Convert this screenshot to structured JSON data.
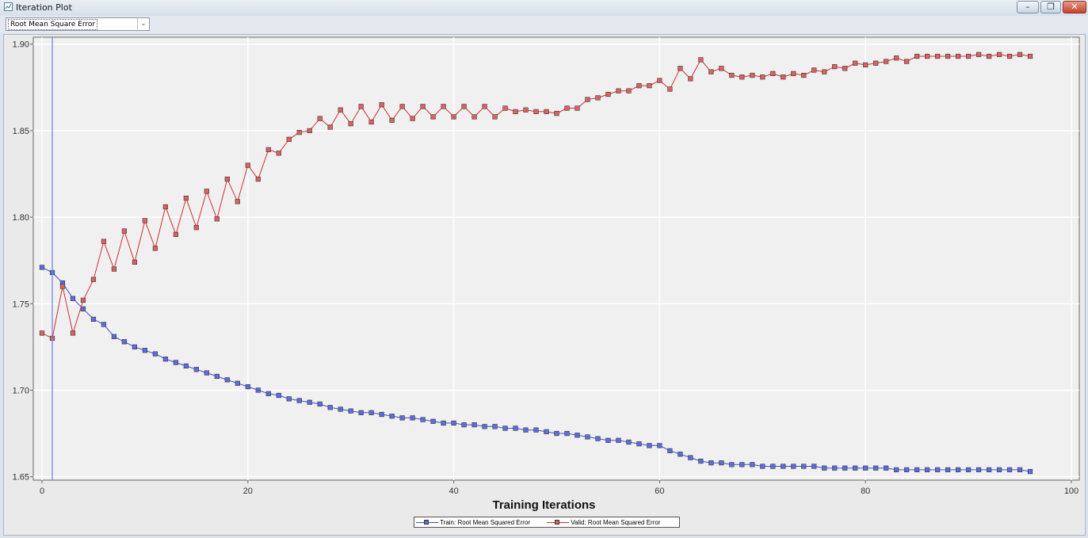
{
  "window": {
    "title": "Iteration Plot",
    "minimize_label": "–",
    "restore_label": "❐",
    "close_label": "✕"
  },
  "toolbar": {
    "statistic_select": "Root Mean Square Error"
  },
  "chart_data": {
    "type": "line",
    "xlabel": "Training Iterations",
    "ylabel": "",
    "xlim": [
      0,
      100
    ],
    "ylim": [
      1.648,
      1.904
    ],
    "xticks": [
      "0",
      "20",
      "40",
      "60",
      "80",
      "100"
    ],
    "yticks": [
      "1.65",
      "1.70",
      "1.75",
      "1.80",
      "1.85",
      "1.90"
    ],
    "grid": true,
    "legend_position": "bottom",
    "reference_line_x": 1,
    "series": [
      {
        "name": "Train: Root Mean Squared Error",
        "color": "#5b6ee0",
        "line_color": "#3d4fd1",
        "x": [
          0,
          1,
          2,
          3,
          4,
          5,
          6,
          7,
          8,
          9,
          10,
          11,
          12,
          13,
          14,
          15,
          16,
          17,
          18,
          19,
          20,
          21,
          22,
          23,
          24,
          25,
          26,
          27,
          28,
          29,
          30,
          31,
          32,
          33,
          34,
          35,
          36,
          37,
          38,
          39,
          40,
          41,
          42,
          43,
          44,
          45,
          46,
          47,
          48,
          49,
          50,
          51,
          52,
          53,
          54,
          55,
          56,
          57,
          58,
          59,
          60,
          61,
          62,
          63,
          64,
          65,
          66,
          67,
          68,
          69,
          70,
          71,
          72,
          73,
          74,
          75,
          76,
          77,
          78,
          79,
          80,
          81,
          82,
          83,
          84,
          85,
          86,
          87,
          88,
          89,
          90,
          91,
          92,
          93,
          94,
          95,
          96
        ],
        "values": [
          1.771,
          1.768,
          1.762,
          1.753,
          1.747,
          1.741,
          1.738,
          1.731,
          1.728,
          1.725,
          1.723,
          1.721,
          1.718,
          1.716,
          1.714,
          1.712,
          1.71,
          1.708,
          1.706,
          1.704,
          1.702,
          1.7,
          1.698,
          1.697,
          1.695,
          1.694,
          1.693,
          1.692,
          1.69,
          1.689,
          1.688,
          1.687,
          1.687,
          1.686,
          1.685,
          1.684,
          1.684,
          1.683,
          1.682,
          1.681,
          1.681,
          1.68,
          1.68,
          1.679,
          1.679,
          1.678,
          1.678,
          1.677,
          1.677,
          1.676,
          1.675,
          1.675,
          1.674,
          1.673,
          1.672,
          1.671,
          1.671,
          1.67,
          1.669,
          1.668,
          1.668,
          1.665,
          1.663,
          1.661,
          1.659,
          1.658,
          1.658,
          1.657,
          1.657,
          1.657,
          1.656,
          1.656,
          1.656,
          1.656,
          1.656,
          1.656,
          1.655,
          1.655,
          1.655,
          1.655,
          1.655,
          1.655,
          1.655,
          1.654,
          1.654,
          1.654,
          1.654,
          1.654,
          1.654,
          1.654,
          1.654,
          1.654,
          1.654,
          1.654,
          1.654,
          1.654,
          1.653
        ]
      },
      {
        "name": "Valid: Root Mean Squared Error",
        "color": "#e06060",
        "line_color": "#d03030",
        "x": [
          0,
          1,
          2,
          3,
          4,
          5,
          6,
          7,
          8,
          9,
          10,
          11,
          12,
          13,
          14,
          15,
          16,
          17,
          18,
          19,
          20,
          21,
          22,
          23,
          24,
          25,
          26,
          27,
          28,
          29,
          30,
          31,
          32,
          33,
          34,
          35,
          36,
          37,
          38,
          39,
          40,
          41,
          42,
          43,
          44,
          45,
          46,
          47,
          48,
          49,
          50,
          51,
          52,
          53,
          54,
          55,
          56,
          57,
          58,
          59,
          60,
          61,
          62,
          63,
          64,
          65,
          66,
          67,
          68,
          69,
          70,
          71,
          72,
          73,
          74,
          75,
          76,
          77,
          78,
          79,
          80,
          81,
          82,
          83,
          84,
          85,
          86,
          87,
          88,
          89,
          90,
          91,
          92,
          93,
          94,
          95,
          96
        ],
        "values": [
          1.733,
          1.73,
          1.76,
          1.733,
          1.752,
          1.764,
          1.786,
          1.77,
          1.792,
          1.774,
          1.798,
          1.782,
          1.806,
          1.79,
          1.811,
          1.794,
          1.815,
          1.799,
          1.822,
          1.809,
          1.83,
          1.822,
          1.839,
          1.837,
          1.845,
          1.849,
          1.85,
          1.857,
          1.852,
          1.862,
          1.854,
          1.864,
          1.855,
          1.865,
          1.856,
          1.864,
          1.857,
          1.864,
          1.858,
          1.864,
          1.858,
          1.864,
          1.858,
          1.864,
          1.858,
          1.863,
          1.861,
          1.862,
          1.861,
          1.861,
          1.86,
          1.863,
          1.863,
          1.868,
          1.869,
          1.871,
          1.873,
          1.873,
          1.876,
          1.876,
          1.879,
          1.874,
          1.886,
          1.88,
          1.891,
          1.884,
          1.886,
          1.882,
          1.881,
          1.882,
          1.881,
          1.883,
          1.881,
          1.883,
          1.882,
          1.885,
          1.884,
          1.887,
          1.886,
          1.889,
          1.888,
          1.889,
          1.89,
          1.892,
          1.89,
          1.893,
          1.893,
          1.893,
          1.893,
          1.893,
          1.893,
          1.894,
          1.893,
          1.894,
          1.893,
          1.894,
          1.893
        ]
      }
    ]
  }
}
